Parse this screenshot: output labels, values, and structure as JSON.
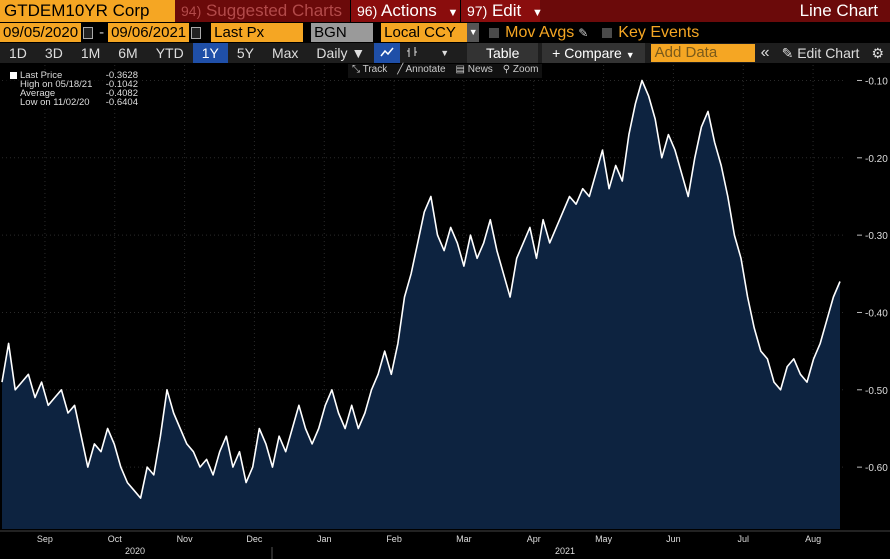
{
  "titlebar": {
    "ticker": "GTDEM10YR Corp",
    "suggested_num": "94)",
    "suggested": "Suggested Charts",
    "actions_num": "96)",
    "actions": "Actions",
    "edit_num": "97)",
    "edit": "Edit",
    "chart_type": "Line Chart"
  },
  "dates": {
    "start": "09/05/2020",
    "end": "09/06/2021",
    "dash": "-",
    "price_field": "Last Px",
    "source": "BGN",
    "currency": "Local CCY",
    "mov_avgs": "Mov Avgs",
    "key_events": "Key Events"
  },
  "ranges": {
    "items": [
      "1D",
      "3D",
      "1M",
      "6M",
      "YTD",
      "1Y",
      "5Y",
      "Max"
    ],
    "active": "1Y",
    "frequency": "Daily",
    "table": "Table",
    "compare": "+ Compare",
    "add_data_placeholder": "Add Data",
    "edit_chart": "Edit Chart"
  },
  "subtools": [
    "Track",
    "Annotate",
    "News",
    "Zoom"
  ],
  "legend": [
    {
      "name": "Last Price",
      "value": "-0.3628"
    },
    {
      "name": "High on 05/18/21",
      "value": "-0.1042"
    },
    {
      "name": "Average",
      "value": "-0.4082"
    },
    {
      "name": "Low on 11/02/20",
      "value": "-0.6404"
    }
  ],
  "colors": {
    "line": "#ffffff",
    "fill": "#0d2340",
    "accent_orange": "#f5a623",
    "title_red": "#6b0a0a",
    "active_blue": "#1f4fa8"
  },
  "chart_data": {
    "type": "area",
    "ylim": [
      -0.68,
      -0.08
    ],
    "yticks": [
      -0.1,
      -0.2,
      -0.3,
      -0.4,
      -0.5,
      -0.6
    ],
    "ytick_labels": [
      "-0.10",
      "-0.20",
      "-0.30",
      "-0.40",
      "-0.50",
      "-0.60"
    ],
    "months": [
      "Sep",
      "Oct",
      "Nov",
      "Dec",
      "Jan",
      "Feb",
      "Mar",
      "Apr",
      "May",
      "Jun",
      "Jul",
      "Aug"
    ],
    "years": [
      "2020",
      "2021"
    ],
    "values": [
      -0.49,
      -0.44,
      -0.5,
      -0.49,
      -0.48,
      -0.51,
      -0.49,
      -0.52,
      -0.51,
      -0.5,
      -0.53,
      -0.52,
      -0.56,
      -0.6,
      -0.57,
      -0.58,
      -0.55,
      -0.57,
      -0.6,
      -0.62,
      -0.63,
      -0.64,
      -0.6,
      -0.61,
      -0.56,
      -0.5,
      -0.53,
      -0.55,
      -0.57,
      -0.58,
      -0.6,
      -0.59,
      -0.61,
      -0.58,
      -0.56,
      -0.6,
      -0.58,
      -0.62,
      -0.6,
      -0.55,
      -0.57,
      -0.6,
      -0.56,
      -0.58,
      -0.55,
      -0.52,
      -0.55,
      -0.57,
      -0.55,
      -0.52,
      -0.5,
      -0.53,
      -0.55,
      -0.52,
      -0.55,
      -0.53,
      -0.5,
      -0.48,
      -0.45,
      -0.48,
      -0.44,
      -0.38,
      -0.35,
      -0.31,
      -0.27,
      -0.25,
      -0.3,
      -0.32,
      -0.29,
      -0.31,
      -0.34,
      -0.3,
      -0.33,
      -0.31,
      -0.28,
      -0.32,
      -0.35,
      -0.38,
      -0.33,
      -0.31,
      -0.29,
      -0.33,
      -0.28,
      -0.31,
      -0.29,
      -0.27,
      -0.25,
      -0.26,
      -0.24,
      -0.25,
      -0.22,
      -0.19,
      -0.24,
      -0.21,
      -0.23,
      -0.17,
      -0.13,
      -0.1,
      -0.12,
      -0.15,
      -0.2,
      -0.17,
      -0.19,
      -0.22,
      -0.25,
      -0.2,
      -0.16,
      -0.14,
      -0.18,
      -0.21,
      -0.25,
      -0.3,
      -0.33,
      -0.38,
      -0.42,
      -0.45,
      -0.46,
      -0.49,
      -0.5,
      -0.47,
      -0.46,
      -0.48,
      -0.49,
      -0.46,
      -0.44,
      -0.41,
      -0.38,
      -0.36
    ]
  }
}
